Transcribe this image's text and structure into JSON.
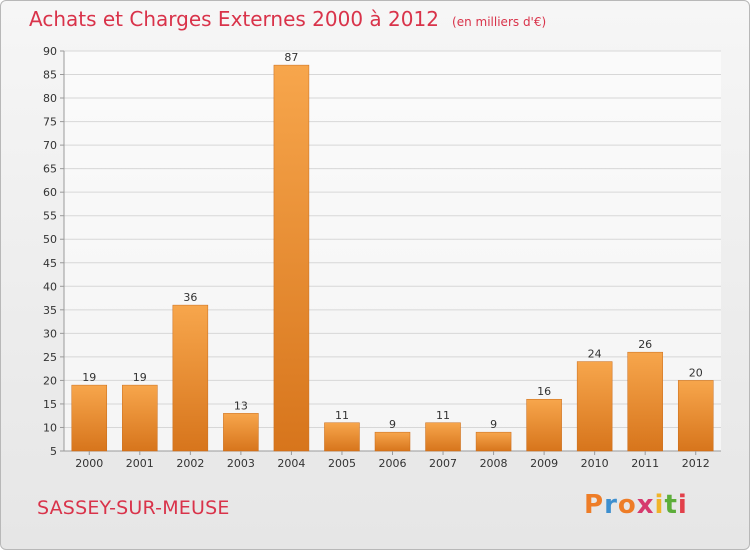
{
  "page": {
    "title": "Achats et Charges Externes 2000 à 2012",
    "unit": "(en milliers d'€)",
    "place": "SASSEY-SUR-MEUSE",
    "brand": "Proxiti"
  },
  "colors": {
    "title": "#d9334a",
    "bar_light": "#f7a64c",
    "bar_dark": "#d7751c",
    "brand_letters": [
      "#ee7d27",
      "#3d8fcf",
      "#ee7d27",
      "#d63a6e",
      "#f0b429",
      "#5dae3a",
      "#e2404a"
    ]
  },
  "chart_data": {
    "type": "bar",
    "categories": [
      "2000",
      "2001",
      "2002",
      "2003",
      "2004",
      "2005",
      "2006",
      "2007",
      "2008",
      "2009",
      "2010",
      "2011",
      "2012"
    ],
    "values": [
      19,
      19,
      36,
      13,
      87,
      11,
      9,
      11,
      9,
      16,
      24,
      26,
      20
    ],
    "value_labels": [
      "19",
      "19",
      "36",
      "13",
      "87",
      "11",
      "9",
      "11",
      "9",
      "16",
      "24",
      "26",
      "20"
    ],
    "yticks": [
      "5",
      "10",
      "15",
      "20",
      "25",
      "30",
      "35",
      "40",
      "45",
      "50",
      "55",
      "60",
      "65",
      "70",
      "75",
      "80",
      "85",
      "90"
    ],
    "ylim": [
      5,
      90
    ],
    "grid": true,
    "title": "Achats et Charges Externes 2000 à 2012",
    "xlabel": "",
    "ylabel": ""
  }
}
